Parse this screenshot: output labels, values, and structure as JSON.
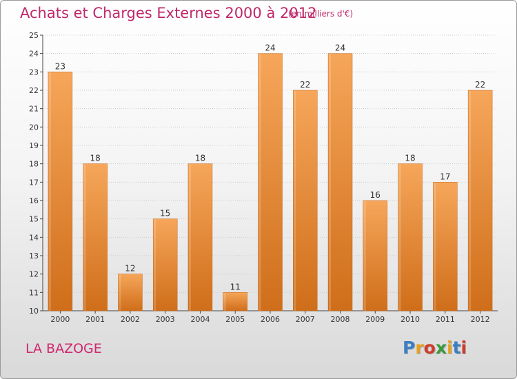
{
  "title": "Achats et Charges Externes 2000 à 2012",
  "subtitle": "(en milliers d'€)",
  "commune": "LA BAZOGE",
  "logo": {
    "text": "Proxiti",
    "letters": [
      {
        "char": "P",
        "color": "#3a7fc4"
      },
      {
        "char": "r",
        "color": "#e8a020"
      },
      {
        "char": "o",
        "color": "#d03a2a"
      },
      {
        "char": "x",
        "color": "#3a9a3a"
      },
      {
        "char": "i",
        "color": "#e8a020"
      },
      {
        "char": "t",
        "color": "#3a7fc4"
      },
      {
        "char": "i",
        "color": "#d03a2a"
      }
    ]
  },
  "colors": {
    "title": "#c0286a",
    "bar_light": "#f6a65a",
    "bar_dark": "#cf6e1a",
    "axis": "#444444",
    "grid": "#cccccc"
  },
  "chart_data": {
    "type": "bar",
    "categories": [
      "2000",
      "2001",
      "2002",
      "2003",
      "2004",
      "2005",
      "2006",
      "2007",
      "2008",
      "2009",
      "2010",
      "2011",
      "2012"
    ],
    "values": [
      23,
      18,
      12,
      15,
      18,
      11,
      24,
      22,
      24,
      16,
      18,
      17,
      22
    ],
    "data_labels": [
      "23",
      "18",
      "12",
      "15",
      "18",
      "11",
      "24",
      "22",
      "24",
      "16",
      "18",
      "17",
      "22"
    ],
    "ylim": [
      10,
      25
    ],
    "yticks": [
      10,
      11,
      12,
      13,
      14,
      15,
      16,
      17,
      18,
      19,
      20,
      21,
      22,
      23,
      24,
      25
    ],
    "grid": true
  }
}
